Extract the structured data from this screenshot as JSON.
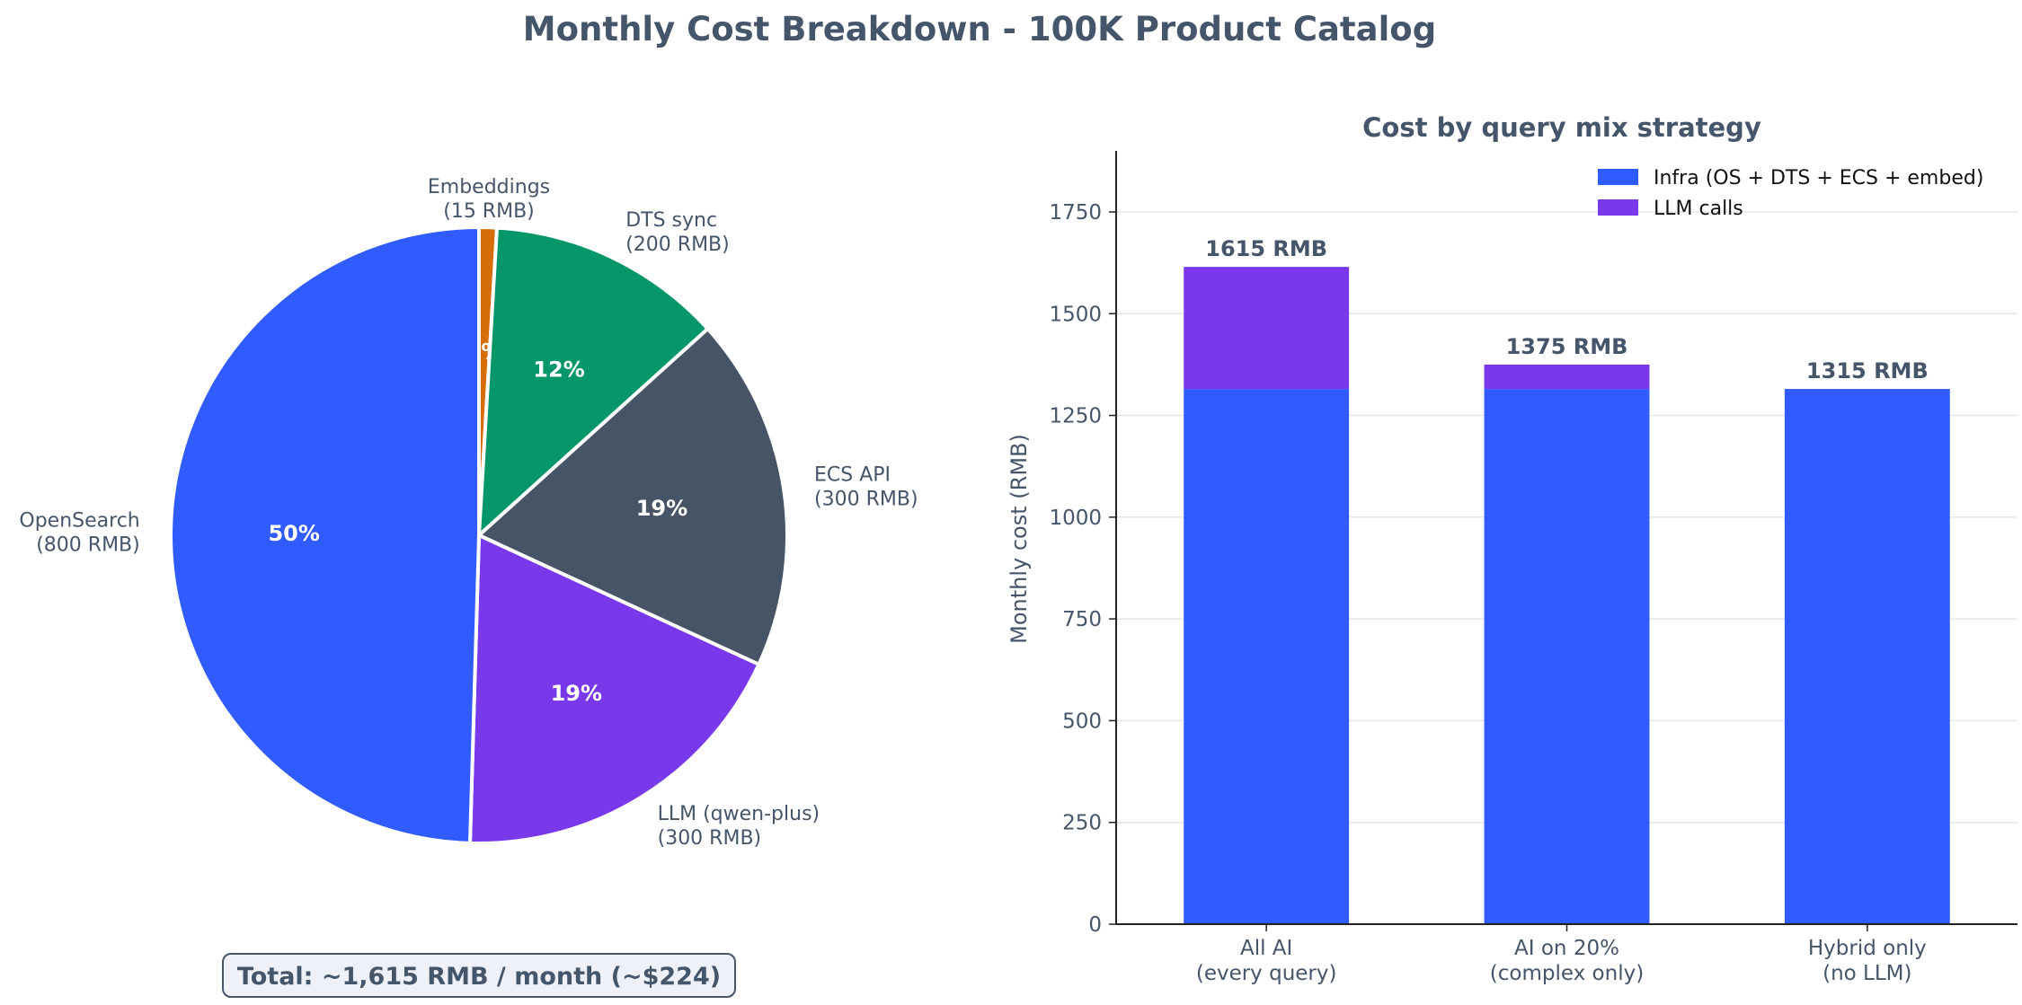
{
  "figure": {
    "title": "Monthly Cost Breakdown - 100K Product Catalog",
    "total_box": "Total: ~1,615 RMB / month (~$224)"
  },
  "colors": {
    "text": "#45556a",
    "infra": "#2f5bff",
    "llm": "#7939ea",
    "opensearch": "#2f5bff",
    "llm_slice": "#7939ea",
    "ecs": "#465466",
    "dts": "#05966a",
    "embeddings": "#d66d06"
  },
  "chart_data": [
    {
      "type": "pie",
      "title": "",
      "start_angle_deg": 90,
      "direction": "clockwise",
      "slices": [
        {
          "name": "Embeddings",
          "value_label": "(15 RMB)",
          "value": 15,
          "pct_label": "1%",
          "color": "#d66d06"
        },
        {
          "name": "DTS sync",
          "value_label": "(200 RMB)",
          "value": 200,
          "pct_label": "12%",
          "color": "#05966a"
        },
        {
          "name": "ECS API",
          "value_label": "(300 RMB)",
          "value": 300,
          "pct_label": "19%",
          "color": "#465466"
        },
        {
          "name": "LLM (qwen-plus)",
          "value_label": "(300 RMB)",
          "value": 300,
          "pct_label": "19%",
          "color": "#7939ea"
        },
        {
          "name": "OpenSearch",
          "value_label": "(800 RMB)",
          "value": 800,
          "pct_label": "50%",
          "color": "#2f5bff"
        }
      ]
    },
    {
      "type": "bar",
      "stacked": true,
      "title": "Cost by query mix strategy",
      "ylabel": "Monthly cost (RMB)",
      "xlabel": "",
      "ylim": [
        0,
        1900
      ],
      "yticks": [
        0,
        250,
        500,
        750,
        1000,
        1250,
        1500,
        1750
      ],
      "grid": "horizontal",
      "legend_position": "top-right",
      "categories": [
        {
          "line1": "All AI",
          "line2": "(every query)"
        },
        {
          "line1": "AI on 20%",
          "line2": "(complex only)"
        },
        {
          "line1": "Hybrid only",
          "line2": "(no LLM)"
        }
      ],
      "series": [
        {
          "name": "Infra (OS + DTS + ECS + embed)",
          "color": "#2f5bff",
          "values": [
            1315,
            1315,
            1315
          ]
        },
        {
          "name": "LLM calls",
          "color": "#7939ea",
          "values": [
            300,
            60,
            0
          ]
        }
      ],
      "totals": [
        1615,
        1375,
        1315
      ],
      "total_labels": [
        "1615 RMB",
        "1375 RMB",
        "1315 RMB"
      ]
    }
  ]
}
